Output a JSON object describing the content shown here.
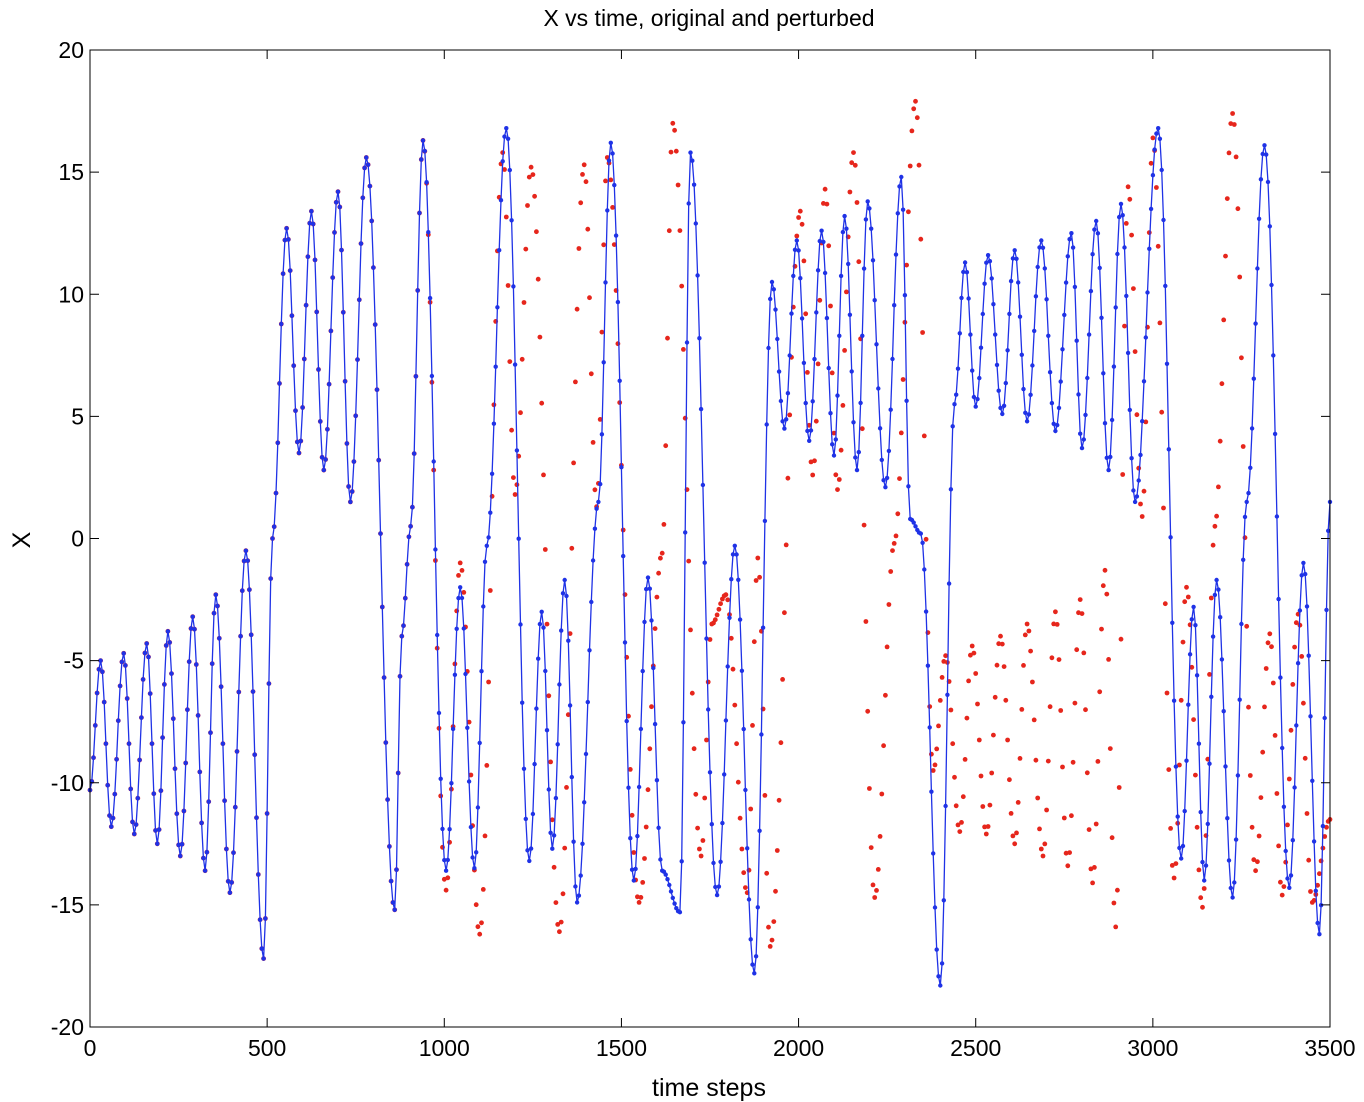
{
  "chart_data": {
    "type": "line",
    "title": "X vs time, original and perturbed",
    "xlabel": "time steps",
    "ylabel": "X",
    "xlim": [
      0,
      3500
    ],
    "ylim": [
      -20,
      20
    ],
    "xticks": [
      0,
      500,
      1000,
      1500,
      2000,
      2500,
      3000,
      3500
    ],
    "yticks": [
      -20,
      -15,
      -10,
      -5,
      0,
      5,
      10,
      15,
      20
    ],
    "grid": false,
    "legend": "none",
    "colors": {
      "original": "#1f32e6",
      "perturbed": "#e6261c"
    },
    "series": [
      {
        "style": "blue line with point markers",
        "peaks_and_troughs": [
          [
            0,
            -10.3
          ],
          [
            30,
            -5.0
          ],
          [
            60,
            -11.8
          ],
          [
            95,
            -4.7
          ],
          [
            125,
            -12.1
          ],
          [
            160,
            -4.3
          ],
          [
            190,
            -12.5
          ],
          [
            220,
            -3.8
          ],
          [
            255,
            -13.0
          ],
          [
            290,
            -3.2
          ],
          [
            325,
            -13.6
          ],
          [
            355,
            -2.3
          ],
          [
            395,
            -14.5
          ],
          [
            440,
            -0.5
          ],
          [
            490,
            -17.2
          ],
          [
            515,
            0.0
          ],
          [
            555,
            12.7
          ],
          [
            590,
            3.5
          ],
          [
            625,
            13.4
          ],
          [
            660,
            2.8
          ],
          [
            700,
            14.2
          ],
          [
            735,
            1.5
          ],
          [
            780,
            15.6
          ],
          [
            860,
            -15.2
          ],
          [
            880,
            -4.0
          ],
          [
            905,
            0.5
          ],
          [
            940,
            16.3
          ],
          [
            1005,
            -13.6
          ],
          [
            1045,
            -2.0
          ],
          [
            1085,
            -13.5
          ],
          [
            1120,
            -0.3
          ],
          [
            1175,
            16.8
          ],
          [
            1240,
            -13.2
          ],
          [
            1275,
            -3.0
          ],
          [
            1305,
            -12.7
          ],
          [
            1340,
            -1.7
          ],
          [
            1375,
            -14.9
          ],
          [
            1435,
            1.5
          ],
          [
            1470,
            16.2
          ],
          [
            1535,
            -14.0
          ],
          [
            1575,
            -1.6
          ],
          [
            1615,
            -13.6
          ],
          [
            1665,
            -15.3
          ],
          [
            1695,
            15.8
          ],
          [
            1770,
            -14.6
          ],
          [
            1820,
            -0.3
          ],
          [
            1875,
            -17.8
          ],
          [
            1925,
            10.5
          ],
          [
            1960,
            4.5
          ],
          [
            1995,
            12.2
          ],
          [
            2030,
            4.0
          ],
          [
            2065,
            12.6
          ],
          [
            2100,
            3.4
          ],
          [
            2130,
            13.2
          ],
          [
            2165,
            2.8
          ],
          [
            2195,
            13.8
          ],
          [
            2245,
            2.1
          ],
          [
            2290,
            14.8
          ],
          [
            2315,
            0.8
          ],
          [
            2345,
            0.2
          ],
          [
            2400,
            -18.3
          ],
          [
            2440,
            5.5
          ],
          [
            2470,
            11.3
          ],
          [
            2500,
            5.4
          ],
          [
            2535,
            11.6
          ],
          [
            2575,
            5.1
          ],
          [
            2610,
            11.8
          ],
          [
            2645,
            4.8
          ],
          [
            2685,
            12.2
          ],
          [
            2725,
            4.4
          ],
          [
            2770,
            12.5
          ],
          [
            2800,
            3.7
          ],
          [
            2840,
            13.0
          ],
          [
            2875,
            2.8
          ],
          [
            2910,
            13.7
          ],
          [
            2950,
            1.5
          ],
          [
            3015,
            16.8
          ],
          [
            3080,
            -13.1
          ],
          [
            3115,
            -2.8
          ],
          [
            3145,
            -14.0
          ],
          [
            3180,
            -1.7
          ],
          [
            3225,
            -14.7
          ],
          [
            3265,
            1.5
          ],
          [
            3315,
            16.1
          ],
          [
            3385,
            -14.3
          ],
          [
            3425,
            -1.0
          ],
          [
            3470,
            -16.2
          ],
          [
            3500,
            1.5
          ]
        ]
      },
      {
        "style": "red point markers",
        "peaks_and_troughs": [
          [
            0,
            -10.3
          ],
          [
            30,
            -5.0
          ],
          [
            60,
            -11.8
          ],
          [
            95,
            -4.7
          ],
          [
            125,
            -12.1
          ],
          [
            160,
            -4.3
          ],
          [
            190,
            -12.5
          ],
          [
            220,
            -3.8
          ],
          [
            255,
            -13.0
          ],
          [
            290,
            -3.2
          ],
          [
            325,
            -13.6
          ],
          [
            355,
            -2.3
          ],
          [
            395,
            -14.5
          ],
          [
            440,
            -0.5
          ],
          [
            490,
            -17.2
          ],
          [
            515,
            0.0
          ],
          [
            555,
            12.7
          ],
          [
            590,
            3.5
          ],
          [
            625,
            13.4
          ],
          [
            660,
            2.8
          ],
          [
            700,
            14.2
          ],
          [
            735,
            1.5
          ],
          [
            780,
            15.6
          ],
          [
            860,
            -15.2
          ],
          [
            880,
            -4.0
          ],
          [
            905,
            0.5
          ],
          [
            940,
            16.3
          ],
          [
            1005,
            -14.4
          ],
          [
            1045,
            -1.0
          ],
          [
            1100,
            -16.2
          ],
          [
            1165,
            15.8
          ],
          [
            1200,
            1.8
          ],
          [
            1245,
            15.2
          ],
          [
            1325,
            -16.1
          ],
          [
            1395,
            15.3
          ],
          [
            1430,
            1.3
          ],
          [
            1460,
            15.6
          ],
          [
            1550,
            -14.9
          ],
          [
            1615,
            -0.6
          ],
          [
            1645,
            17.0
          ],
          [
            1725,
            -13.0
          ],
          [
            1755,
            -3.5
          ],
          [
            1795,
            -2.3
          ],
          [
            1855,
            -14.5
          ],
          [
            1885,
            -0.8
          ],
          [
            1920,
            -16.7
          ],
          [
            2005,
            13.4
          ],
          [
            2040,
            2.6
          ],
          [
            2075,
            14.3
          ],
          [
            2110,
            2.0
          ],
          [
            2155,
            15.8
          ],
          [
            2215,
            -14.7
          ],
          [
            2270,
            -0.2
          ],
          [
            2330,
            17.9
          ],
          [
            2380,
            -9.5
          ],
          [
            2415,
            -4.8
          ],
          [
            2455,
            -12.0
          ],
          [
            2490,
            -4.4
          ],
          [
            2530,
            -12.1
          ],
          [
            2570,
            -4.0
          ],
          [
            2610,
            -12.5
          ],
          [
            2645,
            -3.5
          ],
          [
            2690,
            -13.0
          ],
          [
            2725,
            -3.0
          ],
          [
            2760,
            -13.4
          ],
          [
            2795,
            -2.5
          ],
          [
            2830,
            -14.1
          ],
          [
            2865,
            -1.3
          ],
          [
            2895,
            -15.9
          ],
          [
            2930,
            14.4
          ],
          [
            2970,
            0.9
          ],
          [
            3000,
            16.4
          ],
          [
            3060,
            -13.9
          ],
          [
            3095,
            -2.0
          ],
          [
            3140,
            -15.1
          ],
          [
            3175,
            0.5
          ],
          [
            3225,
            17.4
          ],
          [
            3290,
            -13.6
          ],
          [
            3330,
            -3.9
          ],
          [
            3365,
            -14.6
          ],
          [
            3410,
            -3.1
          ],
          [
            3450,
            -14.9
          ],
          [
            3500,
            -11.5
          ]
        ]
      }
    ]
  }
}
